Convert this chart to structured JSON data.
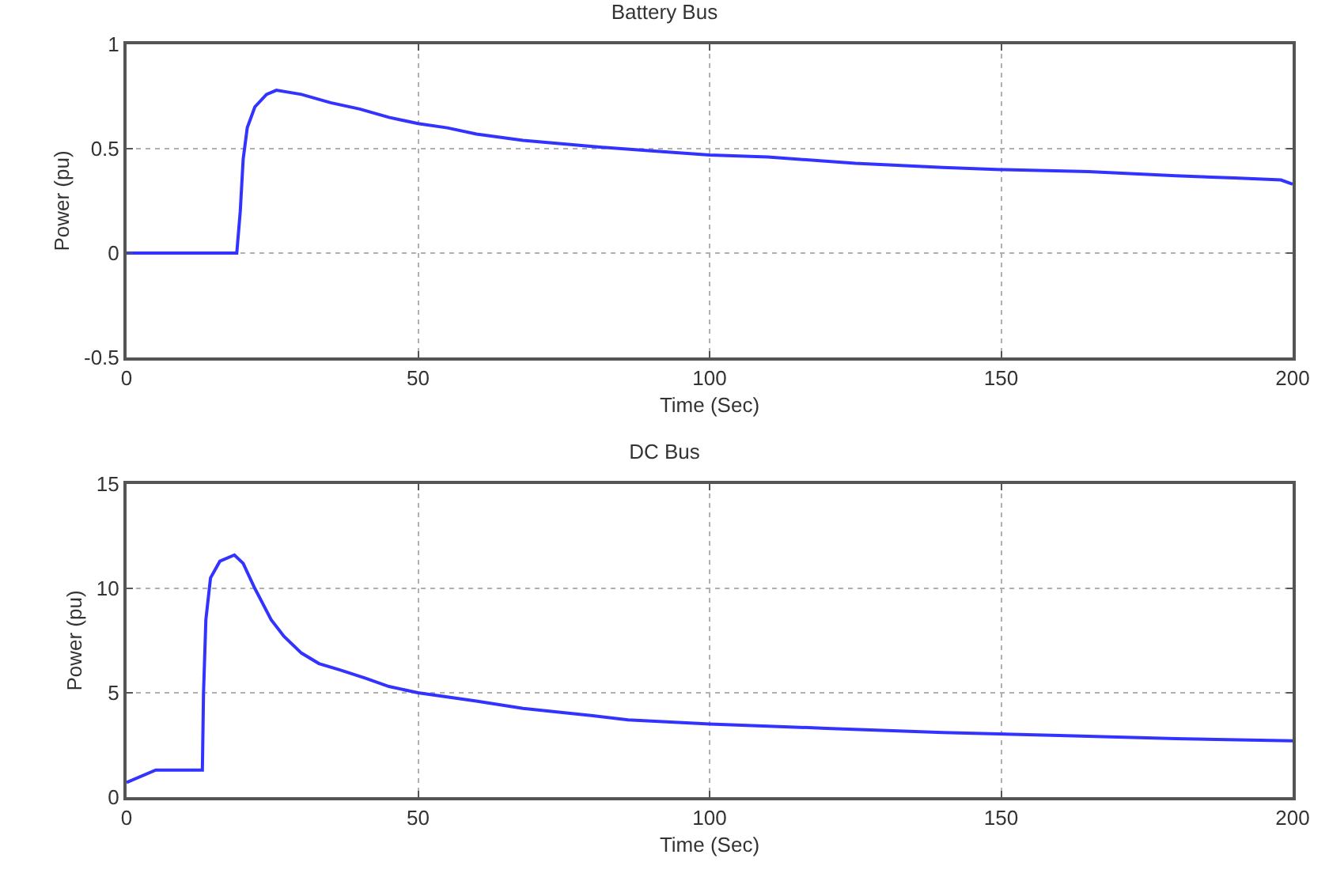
{
  "chart_data": [
    {
      "type": "line",
      "title": "Battery Bus",
      "xlabel": "Time (Sec)",
      "ylabel": "Power (pu)",
      "xlim": [
        0,
        200
      ],
      "xticks": [
        0,
        50,
        100,
        150,
        200
      ],
      "ylim": [
        -0.5,
        1
      ],
      "yticks": [
        -0.5,
        0,
        0.5,
        1
      ],
      "grid": true,
      "legend": false,
      "marker": "none",
      "line_style": "solid",
      "series": [
        {
          "color": "#3333ff",
          "x": [
            0,
            10,
            18.9,
            19.5,
            20,
            20.7,
            22,
            24,
            25.7,
            30,
            35,
            40,
            45,
            50,
            55,
            60,
            68,
            80,
            90,
            100,
            110,
            125,
            140,
            150,
            165,
            180,
            190,
            198,
            200
          ],
          "values": [
            0,
            0,
            0,
            0.2,
            0.45,
            0.6,
            0.7,
            0.76,
            0.78,
            0.76,
            0.72,
            0.69,
            0.65,
            0.62,
            0.6,
            0.57,
            0.54,
            0.51,
            0.49,
            0.47,
            0.46,
            0.43,
            0.41,
            0.4,
            0.39,
            0.37,
            0.36,
            0.35,
            0.33
          ]
        }
      ]
    },
    {
      "type": "line",
      "title": "DC Bus",
      "xlabel": "Time (Sec)",
      "ylabel": "Power (pu)",
      "xlim": [
        0,
        200
      ],
      "xticks": [
        0,
        50,
        100,
        150,
        200
      ],
      "ylim": [
        0,
        15
      ],
      "yticks": [
        0,
        5,
        10,
        15
      ],
      "grid": true,
      "legend": false,
      "marker": "none",
      "line_style": "solid",
      "series": [
        {
          "color": "#3333ff",
          "x": [
            0,
            5,
            13,
            13.2,
            13.6,
            14.4,
            16,
            18.5,
            20,
            22,
            24.8,
            27,
            30,
            33,
            36.5,
            41,
            45,
            50,
            60,
            68,
            80,
            86,
            100,
            120,
            140,
            160,
            180,
            200
          ],
          "values": [
            0.7,
            1.3,
            1.3,
            5,
            8.5,
            10.5,
            11.3,
            11.6,
            11.2,
            10,
            8.5,
            7.7,
            6.9,
            6.4,
            6.1,
            5.7,
            5.3,
            5.0,
            4.6,
            4.25,
            3.9,
            3.7,
            3.5,
            3.3,
            3.1,
            2.95,
            2.8,
            2.7
          ]
        }
      ]
    }
  ]
}
